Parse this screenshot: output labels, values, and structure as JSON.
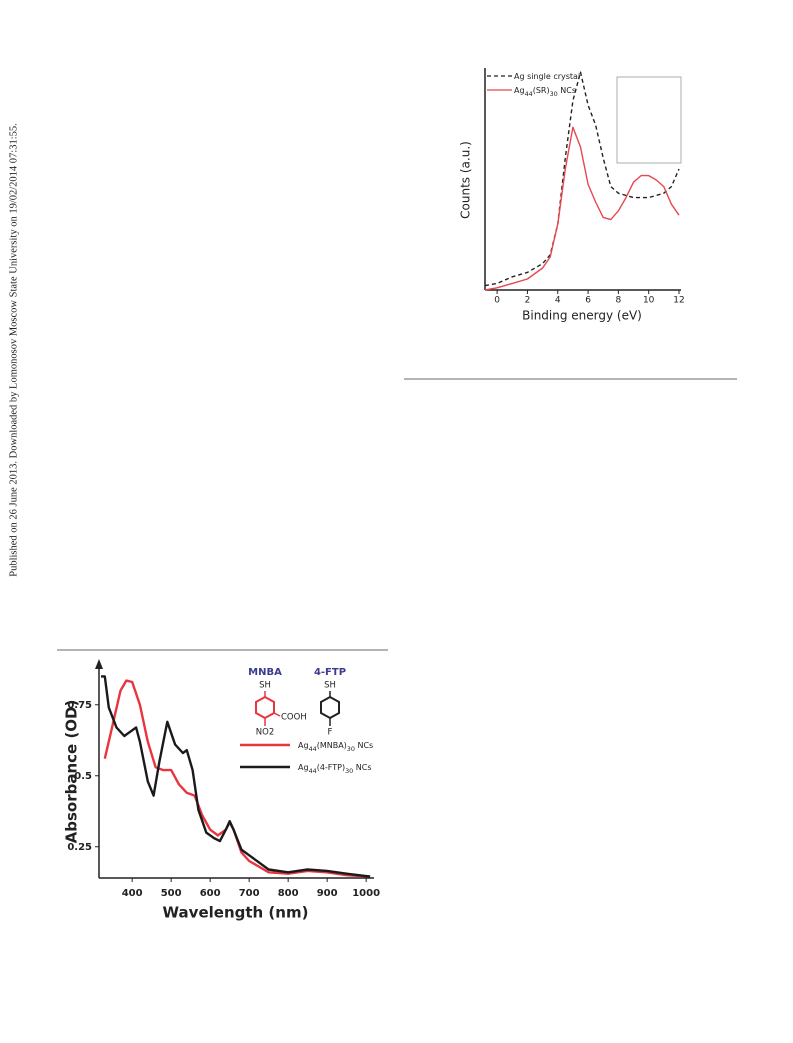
{
  "sidebar": "Published on 26 June 2013. Downloaded by Lomonosov Moscow State University on 19/02/2014 07:31:55.",
  "chart_data": [
    {
      "type": "line",
      "xlabel": "Binding energy (eV)",
      "ylabel": "Counts (a.u.)",
      "x": [
        -0.8,
        0,
        1,
        2,
        3,
        3.5,
        4,
        4.5,
        5,
        5.5,
        6,
        6.5,
        7,
        7.5,
        8,
        8.5,
        9,
        9.5,
        10,
        10.5,
        11,
        11.5,
        12
      ],
      "series": [
        {
          "name": "Ag single crystal",
          "color": "#222222",
          "dash": true,
          "values": [
            0.02,
            0.03,
            0.06,
            0.08,
            0.12,
            0.16,
            0.3,
            0.6,
            0.86,
            0.99,
            0.84,
            0.75,
            0.6,
            0.47,
            0.44,
            0.43,
            0.42,
            0.42,
            0.42,
            0.43,
            0.44,
            0.47,
            0.55
          ]
        },
        {
          "name": "Ag44(SR)30 NCs",
          "color": "#e8474f",
          "dash": false,
          "values": [
            0.0,
            0.01,
            0.03,
            0.05,
            0.1,
            0.15,
            0.3,
            0.55,
            0.74,
            0.65,
            0.48,
            0.4,
            0.33,
            0.32,
            0.36,
            0.42,
            0.49,
            0.52,
            0.52,
            0.5,
            0.47,
            0.39,
            0.34
          ]
        }
      ],
      "xlim": [
        -0.8,
        12
      ],
      "xticks": [
        0,
        2,
        4,
        6,
        8,
        10,
        12
      ],
      "ylim": [
        0,
        1
      ]
    },
    {
      "type": "line",
      "xlabel": "Wavelength (nm)",
      "ylabel": "Absorbance (OD)",
      "series": [
        {
          "name": "Ag44(MNBA)30 NCs",
          "color": "#e8353f",
          "dash": false,
          "x": [
            330,
            350,
            370,
            385,
            400,
            420,
            440,
            460,
            480,
            500,
            520,
            540,
            560,
            580,
            600,
            620,
            640,
            650,
            660,
            680,
            700,
            750,
            800,
            850,
            900,
            950,
            1010
          ],
          "values": [
            0.56,
            0.68,
            0.8,
            0.835,
            0.83,
            0.75,
            0.62,
            0.53,
            0.52,
            0.52,
            0.47,
            0.44,
            0.43,
            0.36,
            0.31,
            0.29,
            0.31,
            0.335,
            0.31,
            0.23,
            0.2,
            0.16,
            0.155,
            0.165,
            0.16,
            0.15,
            0.145
          ]
        },
        {
          "name": "Ag44(4-FTP)30 NCs",
          "color": "#1a1a1a",
          "dash": false,
          "x": [
            320,
            330,
            340,
            360,
            380,
            400,
            410,
            420,
            440,
            455,
            470,
            490,
            510,
            530,
            540,
            555,
            570,
            590,
            610,
            625,
            640,
            650,
            660,
            680,
            700,
            750,
            800,
            850,
            900,
            950,
            1010
          ],
          "values": [
            0.85,
            0.85,
            0.74,
            0.67,
            0.64,
            0.66,
            0.67,
            0.62,
            0.48,
            0.43,
            0.55,
            0.69,
            0.61,
            0.58,
            0.59,
            0.52,
            0.38,
            0.3,
            0.28,
            0.27,
            0.31,
            0.34,
            0.31,
            0.24,
            0.22,
            0.17,
            0.16,
            0.17,
            0.165,
            0.155,
            0.145
          ]
        }
      ],
      "xlim": [
        315,
        1015
      ],
      "xticks": [
        400,
        500,
        600,
        700,
        800,
        900,
        1000
      ],
      "ylim": [
        0.14,
        0.89
      ],
      "yticks": [
        0.25,
        0.5,
        0.75
      ],
      "structures": [
        {
          "name": "MNBA",
          "labels": [
            "SH",
            "COOH",
            "NO2"
          ]
        },
        {
          "name": "4-FTP",
          "labels": [
            "SH",
            "F"
          ]
        }
      ]
    }
  ]
}
